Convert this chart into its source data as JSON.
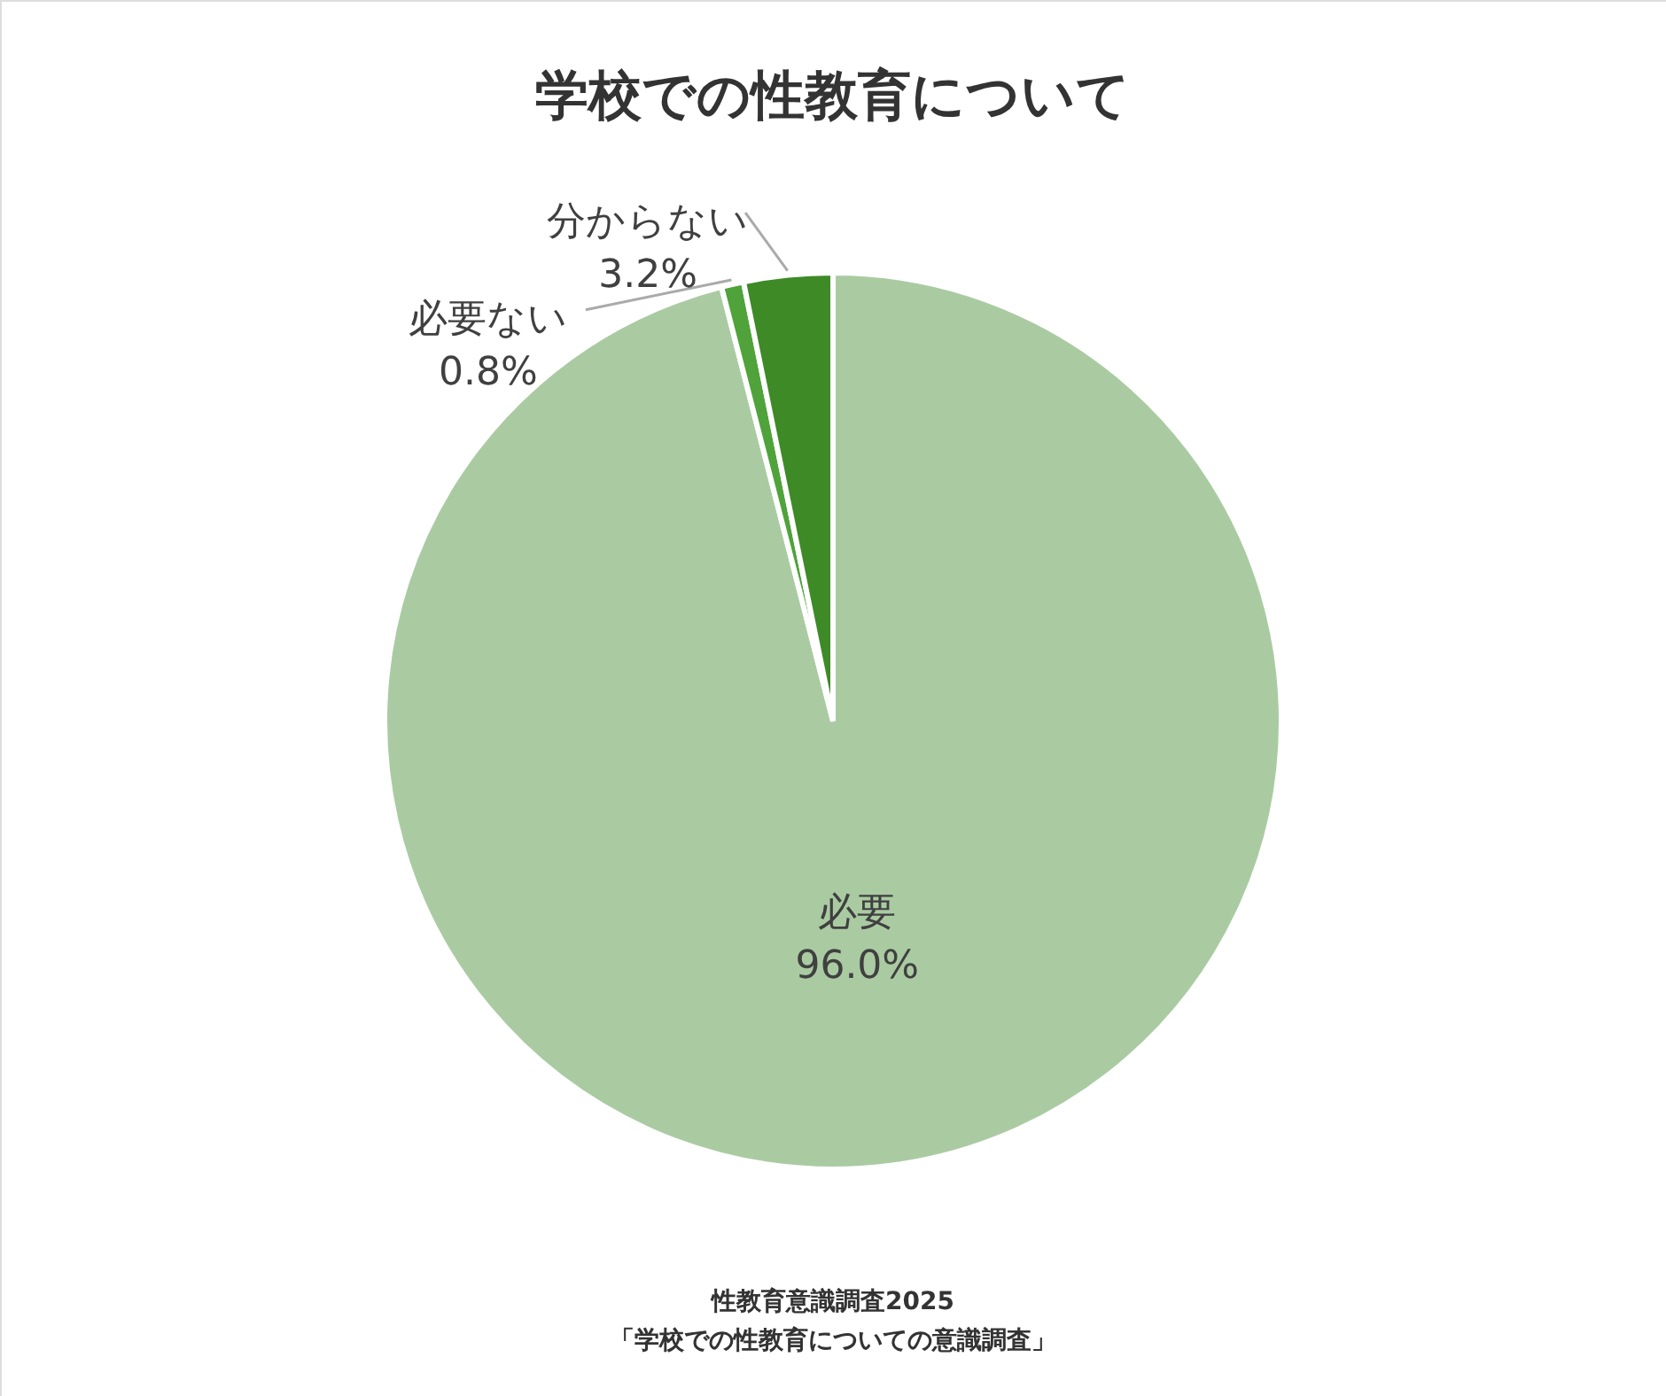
{
  "chart_data": {
    "type": "pie",
    "title": "学校での性教育について",
    "categories": [
      "必要",
      "必要ない",
      "分からない"
    ],
    "values": [
      96.0,
      0.8,
      3.2
    ],
    "value_labels": [
      "96.0%",
      "0.8%",
      "3.2%"
    ],
    "colors": [
      "#aacba2",
      "#4fa33a",
      "#3e8a27"
    ],
    "legend": false,
    "annotations": [
      "性教育意識調査2025",
      "「学校での性教育についての意識調査」"
    ]
  }
}
